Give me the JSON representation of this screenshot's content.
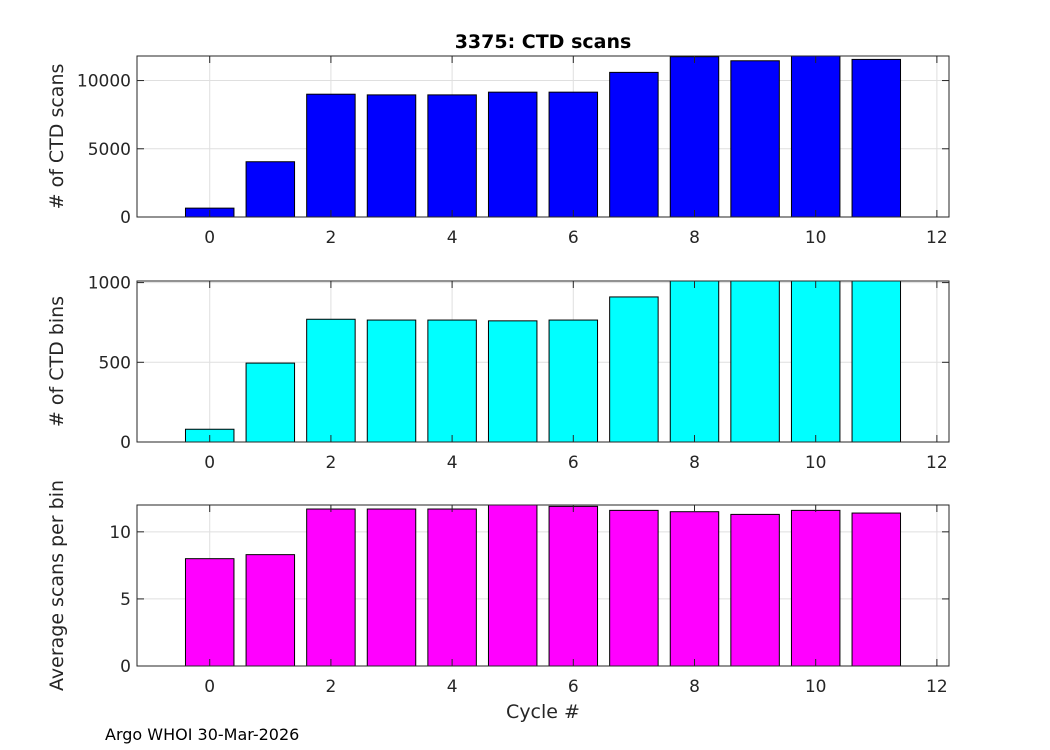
{
  "footer": {
    "text": "Argo WHOI 30-Mar-2026"
  },
  "chart_data": [
    {
      "type": "bar",
      "title": "3375: CTD scans",
      "xlabel": "",
      "ylabel": "# of CTD scans",
      "x": [
        0,
        1,
        2,
        3,
        4,
        5,
        6,
        7,
        8,
        9,
        10,
        11
      ],
      "values": [
        650,
        4050,
        9000,
        8950,
        8950,
        9150,
        9150,
        10600,
        11750,
        11450,
        11800,
        11550
      ],
      "xlim": [
        -1.2,
        12.2
      ],
      "ylim": [
        0,
        11800
      ],
      "xticks": [
        0,
        2,
        4,
        6,
        8,
        10,
        12
      ],
      "yticks": [
        0,
        5000,
        10000
      ],
      "color": "#0000ff",
      "grid": true
    },
    {
      "type": "bar",
      "title": "",
      "xlabel": "",
      "ylabel": "# of CTD bins",
      "x": [
        0,
        1,
        2,
        3,
        4,
        5,
        6,
        7,
        8,
        9,
        10,
        11
      ],
      "values": [
        80,
        495,
        770,
        765,
        765,
        760,
        765,
        910,
        1010,
        1010,
        1010,
        1010
      ],
      "xlim": [
        -1.2,
        12.2
      ],
      "ylim": [
        0,
        1010
      ],
      "xticks": [
        0,
        2,
        4,
        6,
        8,
        10,
        12
      ],
      "yticks": [
        0,
        500,
        1000
      ],
      "color": "#00ffff",
      "grid": true
    },
    {
      "type": "bar",
      "title": "",
      "xlabel": "Cycle #",
      "ylabel": "Average scans per bin",
      "x": [
        0,
        1,
        2,
        3,
        4,
        5,
        6,
        7,
        8,
        9,
        10,
        11
      ],
      "values": [
        8.0,
        8.3,
        11.7,
        11.7,
        11.7,
        12.0,
        11.9,
        11.6,
        11.5,
        11.3,
        11.6,
        11.4
      ],
      "xlim": [
        -1.2,
        12.2
      ],
      "ylim": [
        0,
        12
      ],
      "xticks": [
        0,
        2,
        4,
        6,
        8,
        10,
        12
      ],
      "yticks": [
        0,
        5,
        10
      ],
      "color": "#ff00ff",
      "grid": true
    }
  ]
}
